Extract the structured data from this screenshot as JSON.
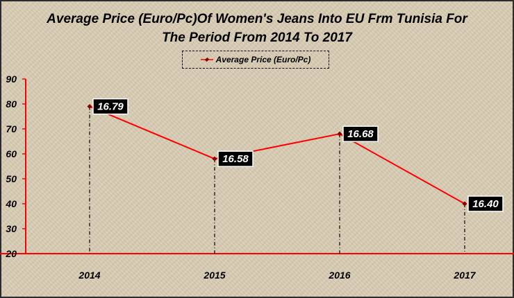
{
  "chart_data": {
    "type": "line",
    "title_line1": "Average Price (Euro/Pc)Of Women's Jeans Into EU Frm Tunisia For",
    "title_line2": "The Period From 2014 To 2017",
    "categories": [
      "2014",
      "2015",
      "2016",
      "2017"
    ],
    "y_ticks": [
      "20",
      "30",
      "40",
      "50",
      "60",
      "70",
      "80",
      "90"
    ],
    "ylim": [
      20,
      90
    ],
    "series": [
      {
        "name": "Average Price (Euro/Pc)",
        "positions": [
          79,
          58,
          68,
          40
        ],
        "labels": [
          "16.79",
          "16.58",
          "16.68",
          "16.40"
        ],
        "color": "#ff0000"
      }
    ],
    "legend_position": "top-center",
    "grid": false,
    "drop_lines": true
  }
}
